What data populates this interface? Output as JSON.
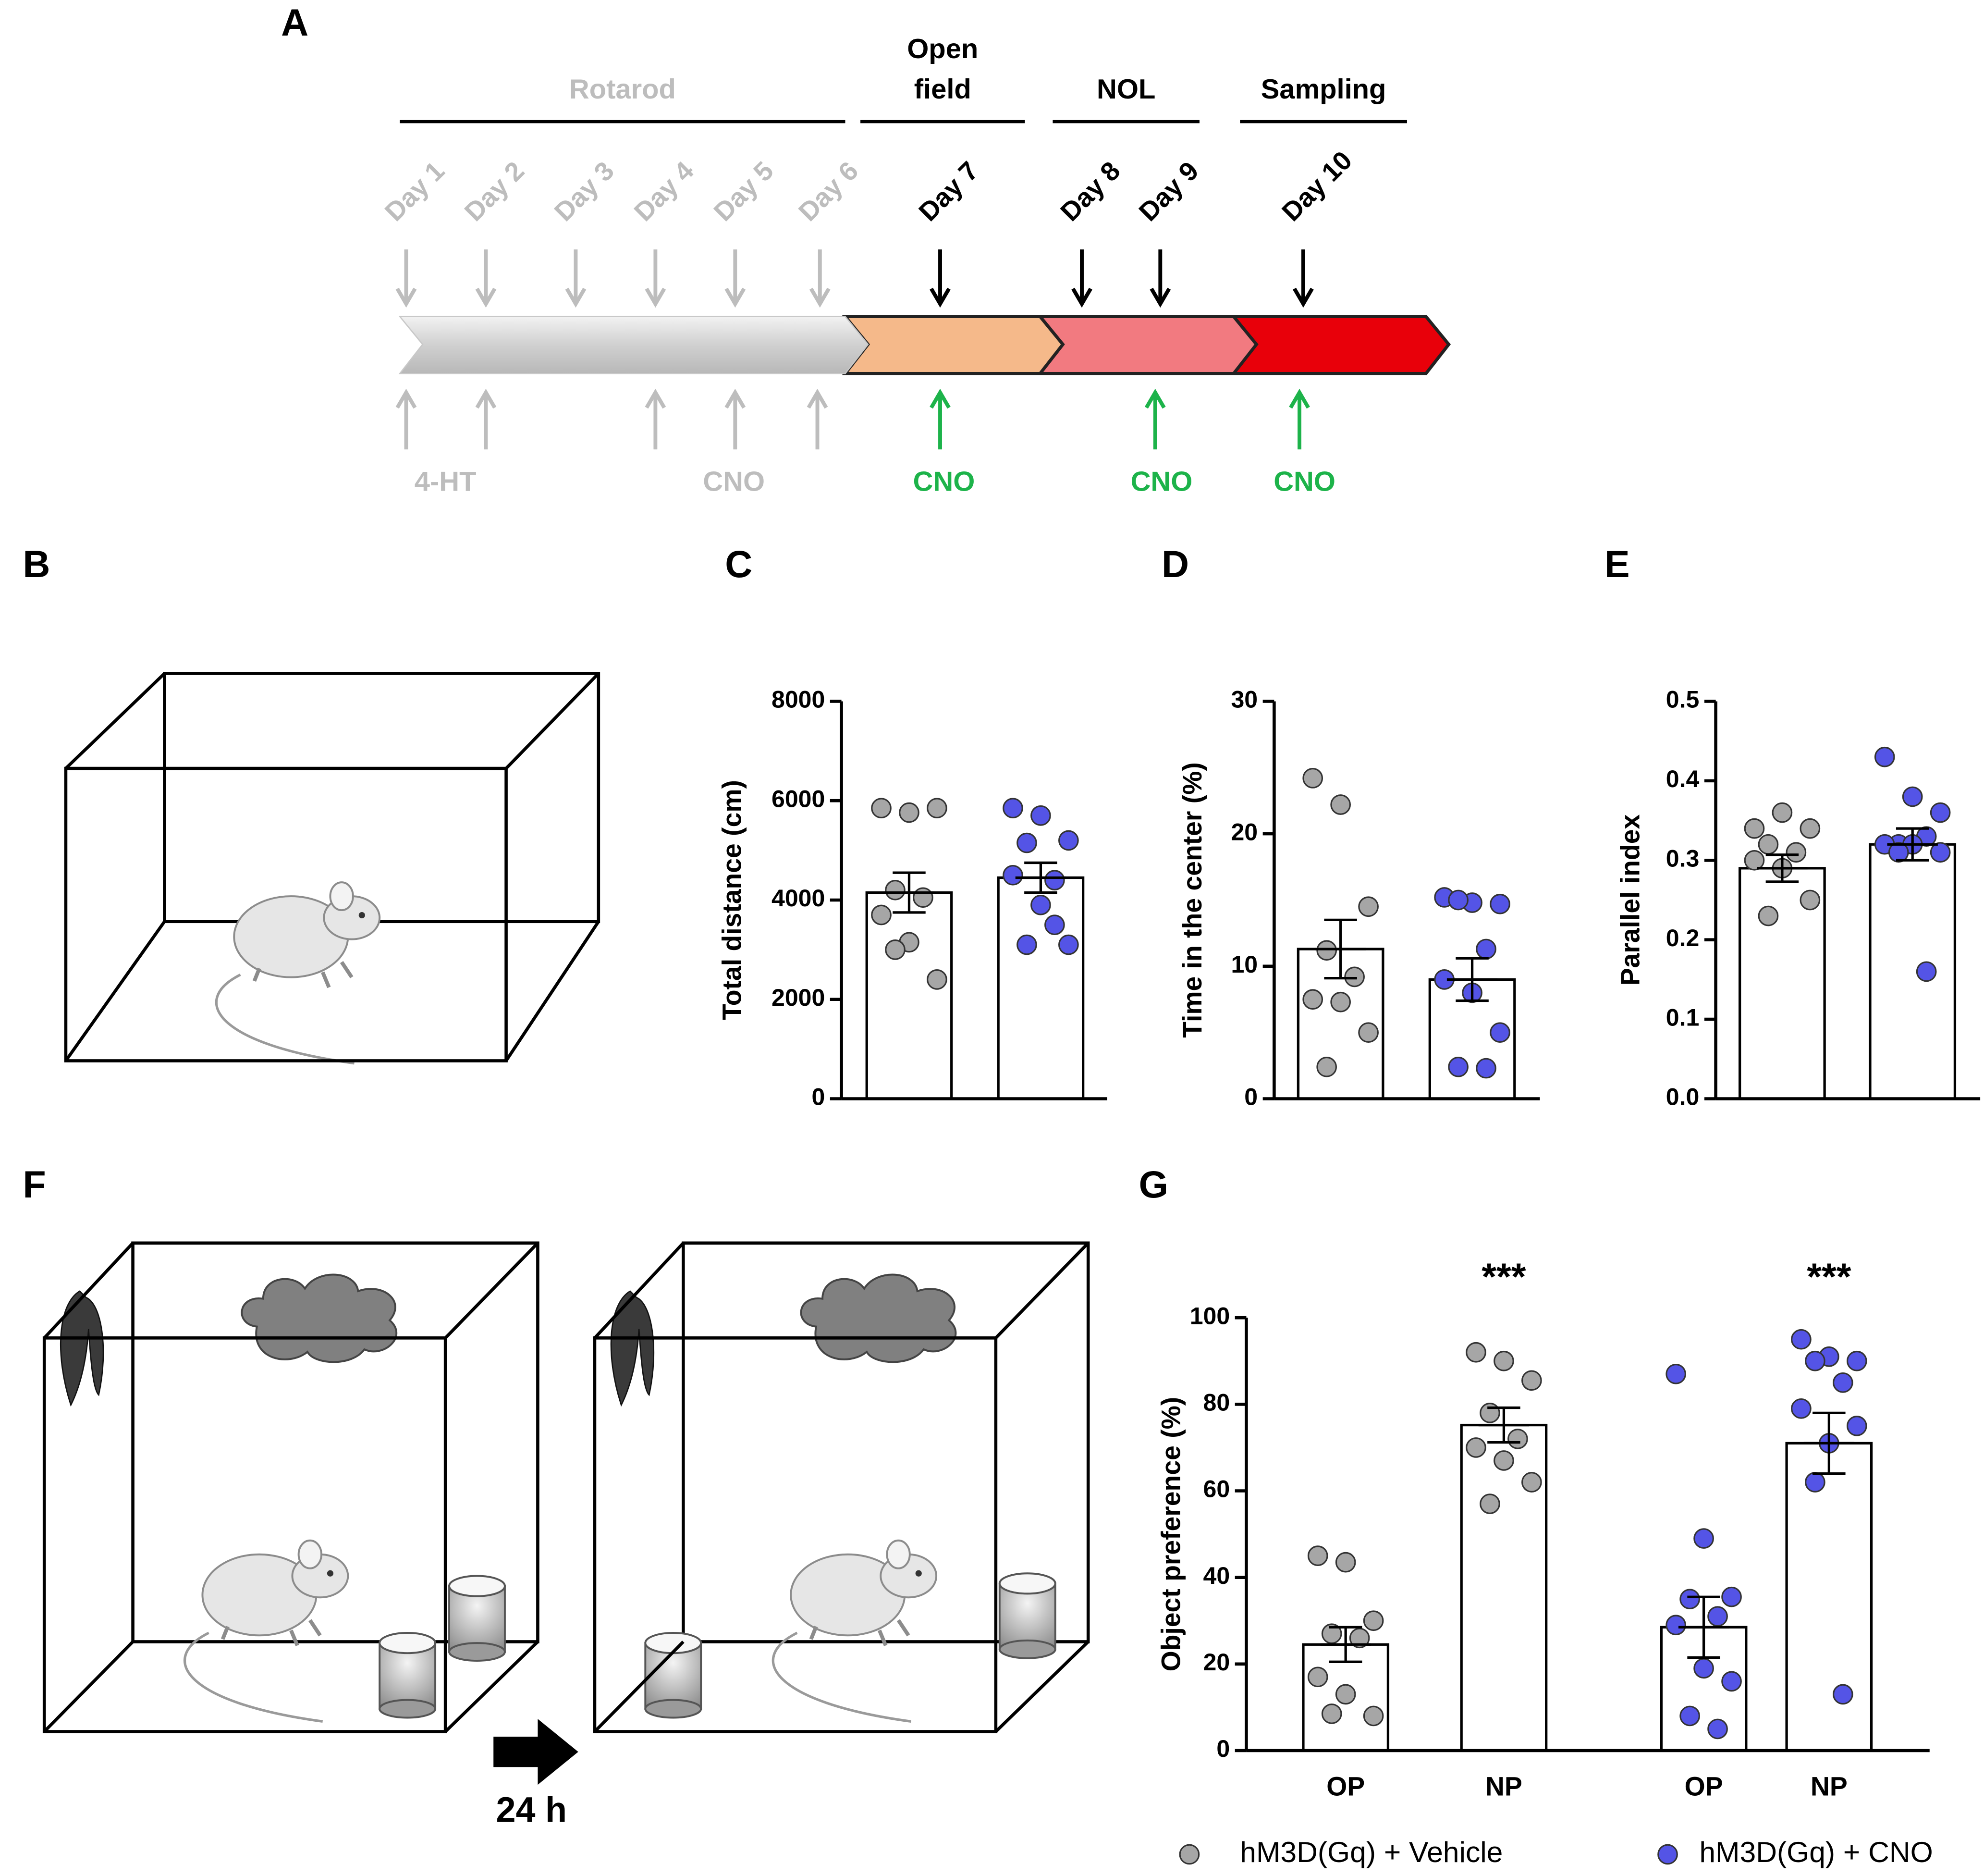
{
  "timeline": {
    "panel": "A",
    "phases": [
      {
        "lines": [
          "Rotarod"
        ],
        "text_color": "#bdbdbd",
        "band_color": "#d4d4d4"
      },
      {
        "lines": [
          "Open",
          "field"
        ],
        "text_color": "#000000",
        "band_color": "#f5b98a"
      },
      {
        "lines": [
          "NOL"
        ],
        "text_color": "#000000",
        "band_color": "#f27a80"
      },
      {
        "lines": [
          "Sampling"
        ],
        "text_color": "#000000",
        "band_color": "#e8000a"
      }
    ],
    "days": [
      {
        "label": "Day 1",
        "color": "#bdbdbd"
      },
      {
        "label": "Day 2",
        "color": "#bdbdbd"
      },
      {
        "label": "Day 3",
        "color": "#bdbdbd"
      },
      {
        "label": "Day 4",
        "color": "#bdbdbd"
      },
      {
        "label": "Day 5",
        "color": "#bdbdbd"
      },
      {
        "label": "Day 6",
        "color": "#bdbdbd"
      },
      {
        "label": "Day 7",
        "color": "#000000"
      },
      {
        "label": "Day 8",
        "color": "#000000"
      },
      {
        "label": "Day 9",
        "color": "#000000"
      },
      {
        "label": "Day 10",
        "color": "#000000"
      }
    ],
    "treatments": [
      {
        "label": "4-HT",
        "color": "#bdbdbd"
      },
      {
        "label": "CNO",
        "color": "#bdbdbd"
      },
      {
        "label": "CNO",
        "color": "#1db34a"
      },
      {
        "label": "CNO",
        "color": "#1db34a"
      },
      {
        "label": "CNO",
        "color": "#1db34a"
      }
    ]
  },
  "diagrams": {
    "panel_b": "B",
    "panel_f": "F",
    "duration": "24 h"
  },
  "chart_data": [
    {
      "type": "bar",
      "panel": "C",
      "y_label": "Total distance (cm)",
      "ylim": [
        0,
        8000
      ],
      "yticks": [
        0,
        2000,
        4000,
        6000,
        8000
      ],
      "values": [
        4150,
        4450
      ],
      "errors": [
        400,
        300
      ],
      "colors": [
        "#a6a6a6",
        "#5454e6"
      ],
      "points": [
        [
          5850,
          5760,
          5850,
          4200,
          4050,
          3700,
          3150,
          2400,
          3000
        ],
        [
          5850,
          5700,
          5200,
          5150,
          4400,
          4500,
          3900,
          3100,
          3100,
          3500
        ]
      ]
    },
    {
      "type": "bar",
      "panel": "D",
      "y_label": "Time in the center (%)",
      "ylim": [
        0,
        30
      ],
      "yticks": [
        0,
        10,
        20,
        30
      ],
      "values": [
        11.3,
        9.0
      ],
      "errors": [
        2.2,
        1.6
      ],
      "colors": [
        "#a6a6a6",
        "#5454e6"
      ],
      "points": [
        [
          24.2,
          22.2,
          14.5,
          11.2,
          9.2,
          7.5,
          7.3,
          5.0,
          2.4
        ],
        [
          15.2,
          14.8,
          14.7,
          15.0,
          11.3,
          9.0,
          8.0,
          5.0,
          2.4,
          2.3
        ]
      ]
    },
    {
      "type": "bar",
      "panel": "E",
      "y_label": "Parallel index",
      "ylim": [
        0,
        0.5
      ],
      "yticks": [
        {
          "value": 0,
          "label": "0.0"
        },
        0.1,
        0.2,
        0.3,
        0.4,
        0.5
      ],
      "values": [
        0.29,
        0.32
      ],
      "errors": [
        0.017,
        0.02
      ],
      "colors": [
        "#a6a6a6",
        "#5454e6"
      ],
      "points": [
        [
          0.34,
          0.36,
          0.34,
          0.32,
          0.31,
          0.3,
          0.29,
          0.25,
          0.23
        ],
        [
          0.43,
          0.38,
          0.36,
          0.32,
          0.33,
          0.32,
          0.32,
          0.31,
          0.31,
          0.16
        ]
      ]
    },
    {
      "type": "bar",
      "panel": "G",
      "y_label": "Object preference (%)",
      "ylim": [
        0,
        100
      ],
      "yticks": [
        0,
        20,
        40,
        60,
        80,
        100
      ],
      "categories": [
        "OP",
        "NP",
        "OP",
        "NP"
      ],
      "values": [
        24.5,
        75.2,
        28.5,
        71.0
      ],
      "errors": [
        4.0,
        4.0,
        7.0,
        7.0
      ],
      "colors": [
        "#a6a6a6",
        "#a6a6a6",
        "#5454e6",
        "#5454e6"
      ],
      "annotations": [
        null,
        "***",
        null,
        "***"
      ],
      "points": [
        [
          45,
          43.5,
          30,
          27,
          26,
          17,
          13,
          8,
          8.5
        ],
        [
          92,
          90,
          85.5,
          78,
          72,
          70,
          67,
          62,
          57
        ],
        [
          87,
          49,
          35.5,
          35,
          31,
          29,
          19,
          16,
          8,
          5
        ],
        [
          95,
          91,
          90,
          90,
          85,
          79,
          71,
          75,
          62,
          13
        ]
      ],
      "legend": [
        {
          "name": "hM3D(Gq) + Vehicle",
          "color": "#a6a6a6"
        },
        {
          "name": "hM3D(Gq) + CNO",
          "color": "#5454e6"
        }
      ]
    }
  ]
}
